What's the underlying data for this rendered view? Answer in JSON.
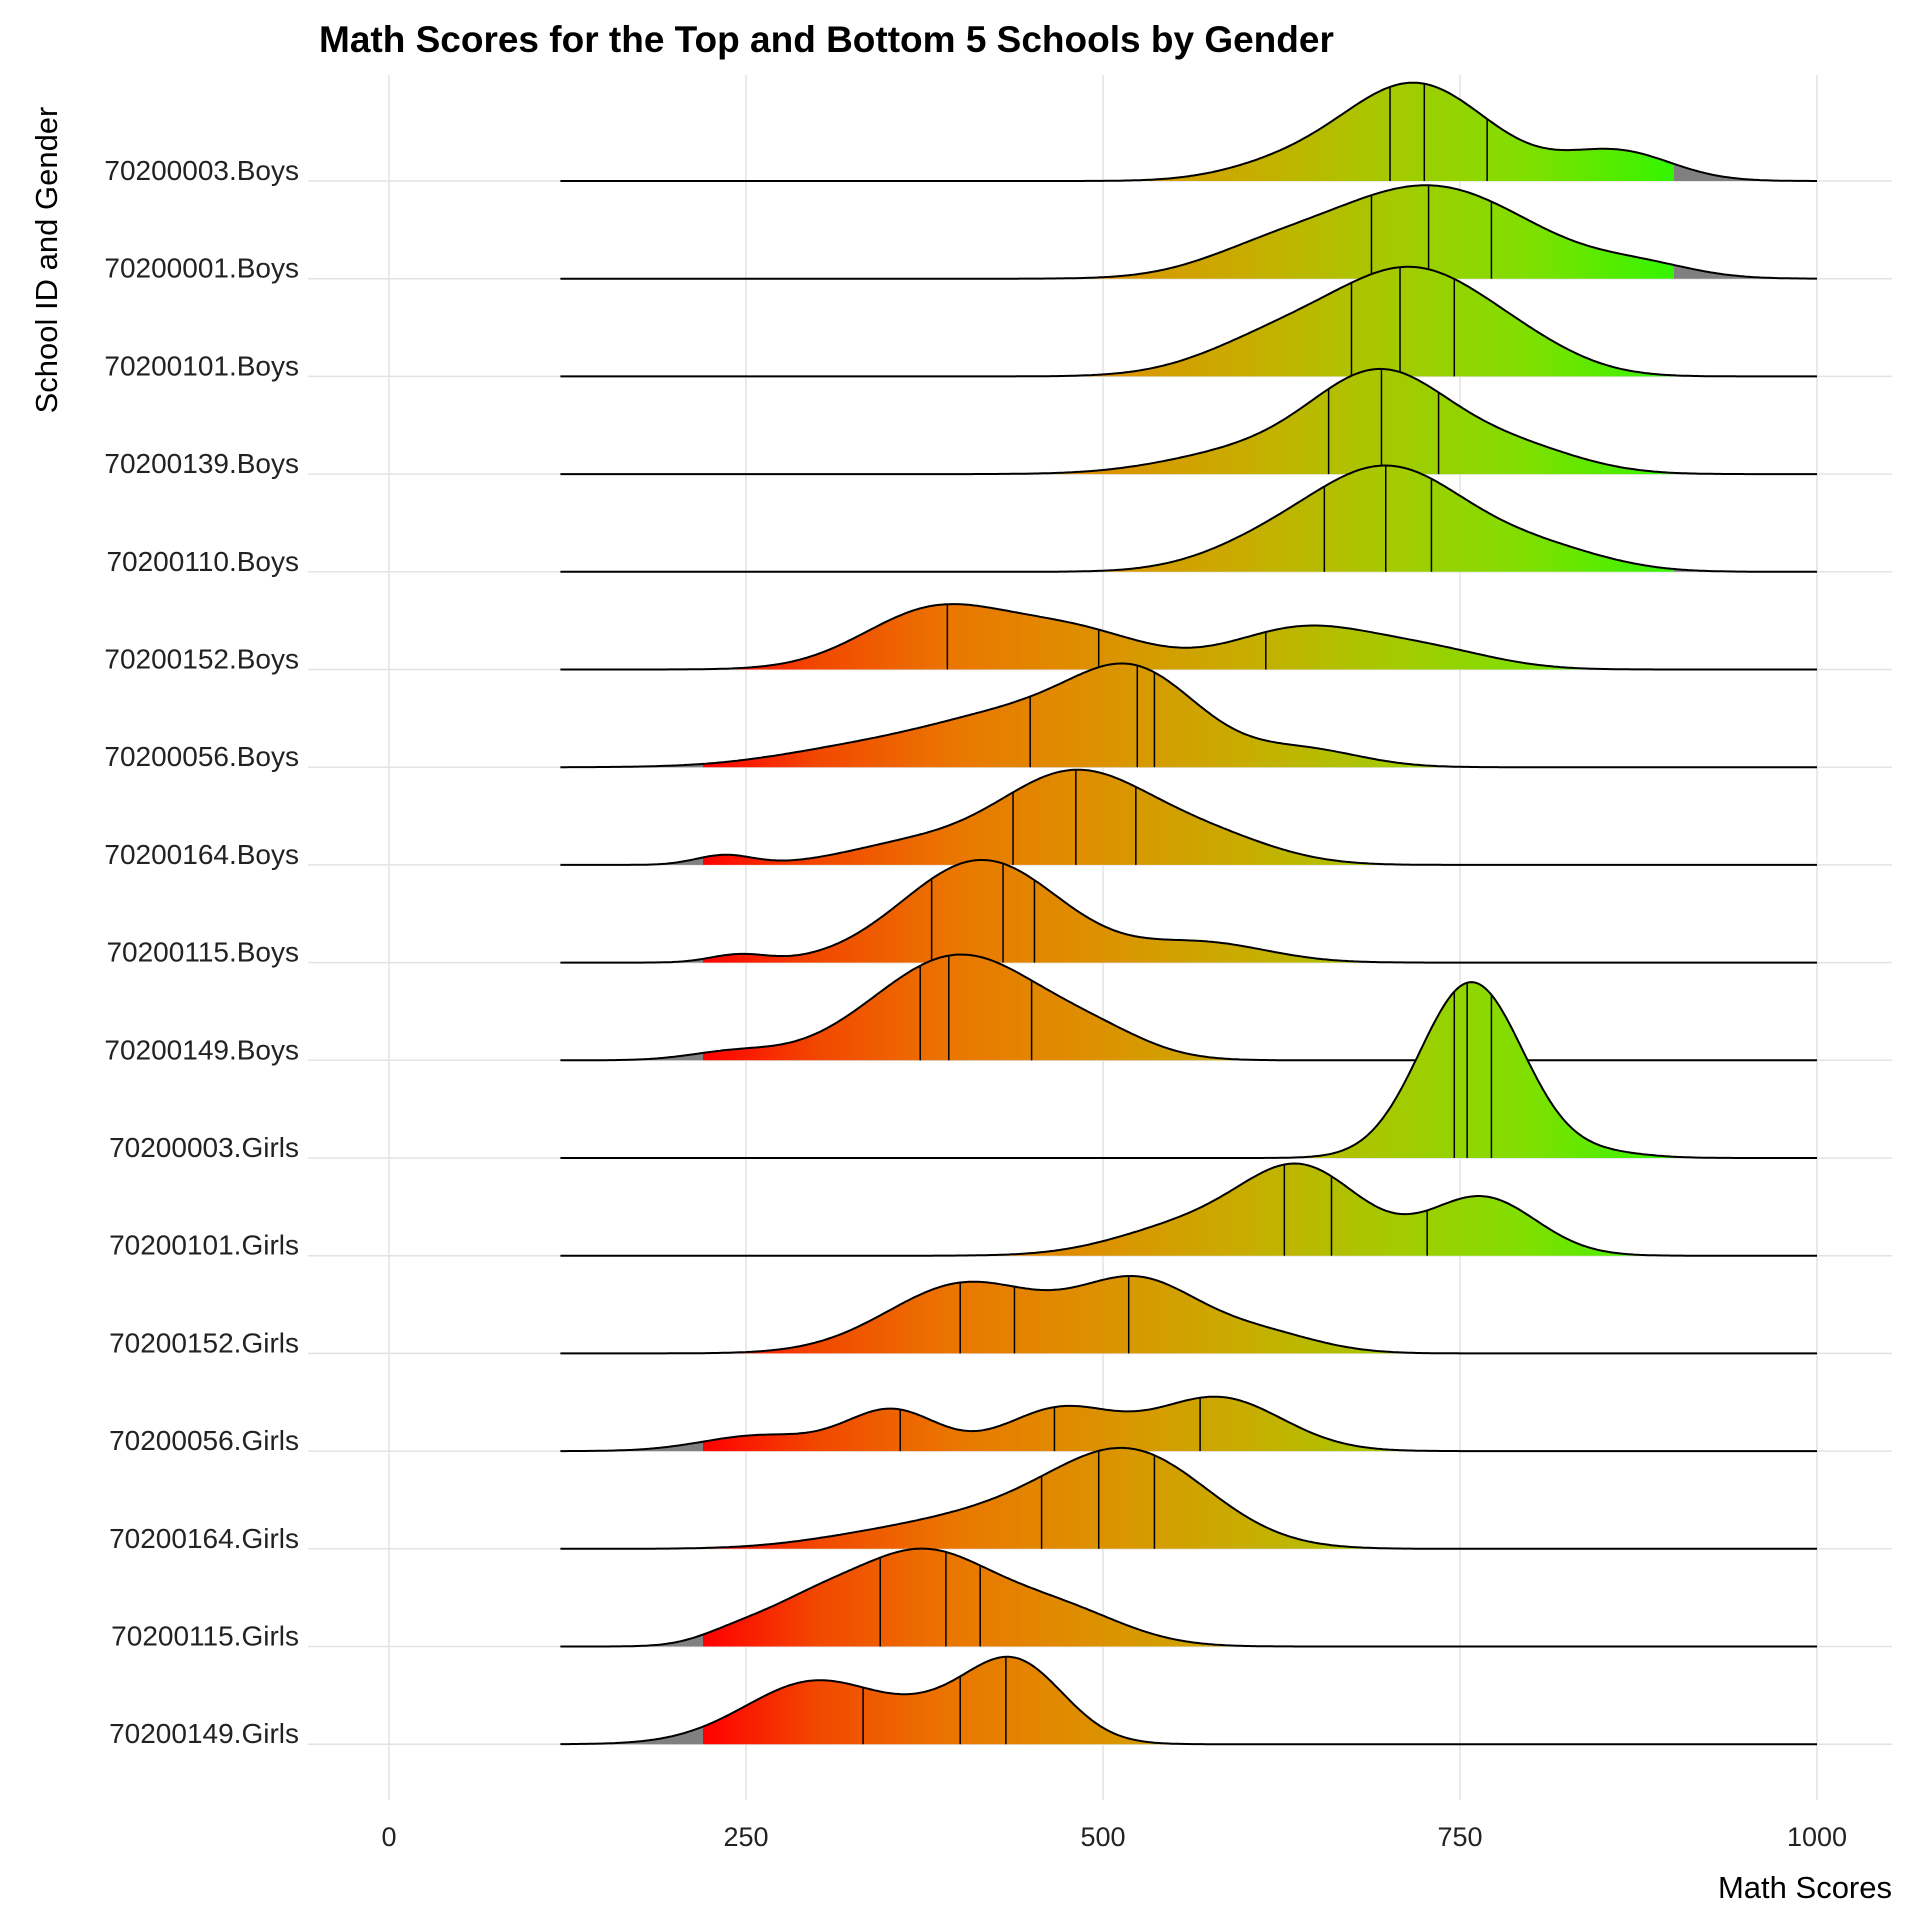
{
  "chart_data": {
    "type": "ridgeline",
    "title": "Math Scores for the Top and Bottom 5 Schools by Gender",
    "xlabel": "Math Scores",
    "ylabel": "School ID and Gender",
    "xlim": [
      0,
      1000
    ],
    "xticks": [
      0,
      250,
      500,
      750,
      1000
    ],
    "xtick_labels": [
      "0",
      "250",
      "500",
      "750",
      "1000"
    ],
    "grid": true,
    "range_drawn": [
      120,
      1000
    ],
    "gray_below": 220,
    "gray_above": 900,
    "color_stops": [
      {
        "score": 220,
        "color": "#ff0000"
      },
      {
        "score": 300,
        "color": "#f24800"
      },
      {
        "score": 400,
        "color": "#ea7800"
      },
      {
        "score": 500,
        "color": "#dc9200"
      },
      {
        "score": 600,
        "color": "#c8ad00"
      },
      {
        "score": 700,
        "color": "#a6c900"
      },
      {
        "score": 800,
        "color": "#7ee000"
      },
      {
        "score": 900,
        "color": "#33f500"
      }
    ],
    "gray_color": "#808080",
    "series": [
      {
        "name": "70200003.Boys",
        "quantiles": [
          701,
          725,
          769
        ],
        "components": [
          [
            718,
            52,
            1.0
          ],
          [
            860,
            38,
            0.3
          ],
          [
            620,
            40,
            0.12
          ]
        ]
      },
      {
        "name": "70200001.Boys",
        "quantiles": [
          688,
          728,
          772
        ],
        "components": [
          [
            728,
            72,
            0.95
          ],
          [
            610,
            45,
            0.18
          ],
          [
            880,
            35,
            0.1
          ]
        ]
      },
      {
        "name": "70200101.Boys",
        "quantiles": [
          674,
          708,
          746
        ],
        "components": [
          [
            718,
            55,
            1.05
          ],
          [
            620,
            50,
            0.35
          ],
          [
            800,
            40,
            0.15
          ]
        ]
      },
      {
        "name": "70200139.Boys",
        "quantiles": [
          658,
          695,
          735
        ],
        "components": [
          [
            695,
            48,
            1.0
          ],
          [
            600,
            55,
            0.22
          ],
          [
            790,
            45,
            0.25
          ]
        ]
      },
      {
        "name": "70200110.Boys",
        "quantiles": [
          655,
          698,
          730
        ],
        "components": [
          [
            700,
            55,
            1.05
          ],
          [
            610,
            45,
            0.2
          ],
          [
            810,
            45,
            0.2
          ]
        ]
      },
      {
        "name": "70200152.Boys",
        "quantiles": [
          391,
          497,
          614
        ],
        "components": [
          [
            382,
            50,
            0.6
          ],
          [
            480,
            50,
            0.38
          ],
          [
            640,
            50,
            0.42
          ],
          [
            730,
            45,
            0.18
          ]
        ]
      },
      {
        "name": "70200056.Boys",
        "quantiles": [
          449,
          524,
          536
        ],
        "components": [
          [
            525,
            45,
            0.85
          ],
          [
            440,
            60,
            0.5
          ],
          [
            330,
            60,
            0.18
          ],
          [
            640,
            40,
            0.18
          ]
        ]
      },
      {
        "name": "70200164.Boys",
        "quantiles": [
          437,
          481,
          523
        ],
        "components": [
          [
            480,
            55,
            0.95
          ],
          [
            580,
            45,
            0.22
          ],
          [
            360,
            45,
            0.18
          ],
          [
            235,
            20,
            0.1
          ]
        ]
      },
      {
        "name": "70200115.Boys",
        "quantiles": [
          380,
          430,
          452
        ],
        "components": [
          [
            415,
            55,
            1.05
          ],
          [
            570,
            45,
            0.2
          ],
          [
            245,
            20,
            0.08
          ]
        ]
      },
      {
        "name": "70200149.Boys",
        "quantiles": [
          372,
          392,
          450
        ],
        "components": [
          [
            400,
            60,
            1.08
          ],
          [
            500,
            35,
            0.15
          ],
          [
            240,
            30,
            0.08
          ]
        ]
      },
      {
        "name": "70200003.Girls",
        "quantiles": [
          746,
          755,
          772
        ],
        "components": [
          [
            758,
            36,
            1.8
          ],
          [
            850,
            30,
            0.05
          ]
        ]
      },
      {
        "name": "70200101.Girls",
        "quantiles": [
          627,
          660,
          727
        ],
        "components": [
          [
            640,
            42,
            0.85
          ],
          [
            765,
            38,
            0.6
          ],
          [
            560,
            50,
            0.3
          ]
        ]
      },
      {
        "name": "70200152.Girls",
        "quantiles": [
          400,
          438,
          518
        ],
        "components": [
          [
            405,
            55,
            0.72
          ],
          [
            525,
            42,
            0.7
          ],
          [
            610,
            40,
            0.2
          ]
        ]
      },
      {
        "name": "70200056.Girls",
        "quantiles": [
          358,
          466,
          568
        ],
        "components": [
          [
            352,
            32,
            0.42
          ],
          [
            470,
            38,
            0.43
          ],
          [
            580,
            45,
            0.55
          ],
          [
            260,
            40,
            0.16
          ]
        ]
      },
      {
        "name": "70200164.Girls",
        "quantiles": [
          457,
          497,
          536
        ],
        "components": [
          [
            520,
            55,
            0.95
          ],
          [
            420,
            60,
            0.3
          ],
          [
            330,
            50,
            0.08
          ]
        ]
      },
      {
        "name": "70200115.Girls",
        "quantiles": [
          344,
          390,
          414
        ],
        "components": [
          [
            372,
            50,
            0.95
          ],
          [
            290,
            35,
            0.3
          ],
          [
            470,
            45,
            0.35
          ],
          [
            240,
            25,
            0.1
          ]
        ]
      },
      {
        "name": "70200149.Girls",
        "quantiles": [
          332,
          400,
          432
        ],
        "components": [
          [
            437,
            35,
            0.85
          ],
          [
            300,
            50,
            0.65
          ],
          [
            380,
            30,
            0.15
          ]
        ]
      }
    ]
  }
}
